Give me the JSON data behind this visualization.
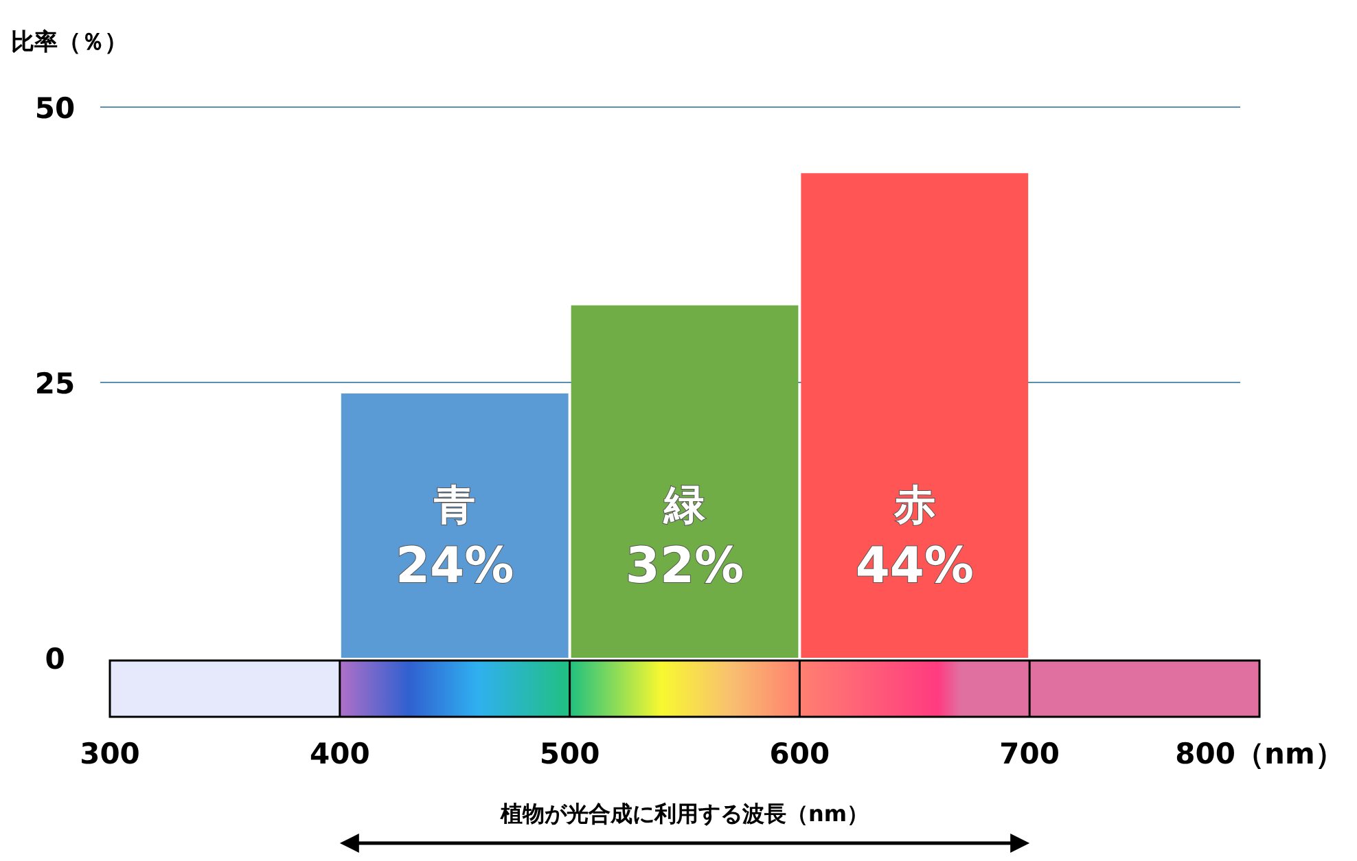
{
  "chart_data": {
    "type": "histogram",
    "ylabel": "比率（％）",
    "xlabel": "植物が光合成に利用する波長（nm）",
    "bins": [
      400,
      500,
      600,
      700
    ],
    "values": [
      24,
      32,
      44
    ],
    "colors": [
      "#5b9bd5",
      "#70ad47",
      "#ff5555"
    ],
    "categories": [
      "青",
      "緑",
      "赤"
    ],
    "value_labels": [
      "24%",
      "32%",
      "44%"
    ],
    "xlim": [
      300,
      800
    ],
    "xticks": [
      300,
      400,
      500,
      600,
      700,
      {
        "value": 800,
        "label": "800（nm）"
      }
    ],
    "ylim": [
      0,
      50
    ],
    "yticks": [
      0,
      25,
      50
    ],
    "ref_lines": [
      {
        "axis": "y",
        "value": 25,
        "color": "#5b8fb0"
      },
      {
        "axis": "y",
        "value": 50,
        "color": "#5b8fb0"
      }
    ]
  }
}
